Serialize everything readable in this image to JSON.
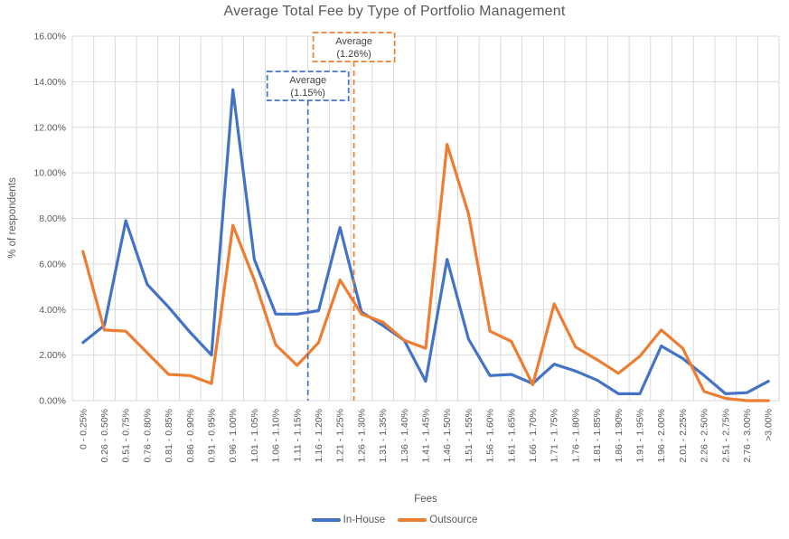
{
  "title": "Average Total Fee by Type of Portfolio Management",
  "axes": {
    "y_title": "% of respondents",
    "x_title": "Fees",
    "y_tick_labels": [
      "0.00%",
      "2.00%",
      "4.00%",
      "6.00%",
      "8.00%",
      "10.00%",
      "12.00%",
      "14.00%",
      "16.00%"
    ]
  },
  "legend": {
    "items": [
      {
        "label": "In-House",
        "color": "#4472C4"
      },
      {
        "label": "Outsource",
        "color": "#ED7D31"
      }
    ]
  },
  "annotations": [
    {
      "line1": "Average",
      "line2": "(1.15%)",
      "color": "#4472C4",
      "x_boundary": 11
    },
    {
      "line1": "Average",
      "line2": "(1.26%)",
      "color": "#ED7D31",
      "x_boundary": 13.15
    }
  ],
  "colors": {
    "gridline": "#D9D9D9",
    "tick_text": "#595959",
    "annotation_text": "#404040",
    "background": "#FFFFFF"
  },
  "chart_data": {
    "type": "line",
    "title": "Average Total Fee by Type of Portfolio Management",
    "xlabel": "Fees",
    "ylabel": "% of respondents",
    "ylim": [
      0,
      16
    ],
    "ytick_step": 2,
    "grid": true,
    "legend_position": "bottom",
    "x_tick_rotation": 90,
    "categories": [
      "0 - 0.25%",
      "0.26 - 0.50%",
      "0.51 - 0.75%",
      "0.76 - 0.80%",
      "0.81 - 0.85%",
      "0.86 - 0.90%",
      "0.91 - 0.95%",
      "0.96 - 1.00%",
      "1.01 - 1.05%",
      "1.06 - 1.10%",
      "1.11 - 1.15%",
      "1.16 - 1.20%",
      "1.21 - 1.25%",
      "1.26 - 1.30%",
      "1.31 - 1.35%",
      "1.36 - 1.40%",
      "1.41 - 1.45%",
      "1.46 - 1.50%",
      "1.51 - 1.55%",
      "1.56 - 1.60%",
      "1.61 - 1.65%",
      "1.66 - 1.70%",
      "1.71 - 1.75%",
      "1.76 - 1.80%",
      "1.81 - 1.85%",
      "1.86 - 1.90%",
      "1.91 - 1.95%",
      "1.96 - 2.00%",
      "2.01 - 2.25%",
      "2.26 - 2.50%",
      "2.51 - 2.75%",
      "2.76 - 3.00%",
      ">3.00%"
    ],
    "series": [
      {
        "name": "In-House",
        "color": "#4472C4",
        "values": [
          2.55,
          3.3,
          7.9,
          5.1,
          4.1,
          3.0,
          2.0,
          13.65,
          6.2,
          3.8,
          3.8,
          3.95,
          7.6,
          3.9,
          3.3,
          2.65,
          0.85,
          6.2,
          2.7,
          1.1,
          1.15,
          0.75,
          1.6,
          1.3,
          0.9,
          0.3,
          0.3,
          2.4,
          1.85,
          1.1,
          0.3,
          0.35,
          0.85
        ]
      },
      {
        "name": "Outsource",
        "color": "#ED7D31",
        "values": [
          6.55,
          3.1,
          3.05,
          2.1,
          1.15,
          1.1,
          0.75,
          7.7,
          5.3,
          2.45,
          1.55,
          2.55,
          5.3,
          3.8,
          3.45,
          2.65,
          2.3,
          11.25,
          8.2,
          3.05,
          2.6,
          0.7,
          4.25,
          2.35,
          1.8,
          1.2,
          1.95,
          3.1,
          2.3,
          0.4,
          0.1,
          0.0,
          0.0
        ]
      }
    ],
    "average_markers": [
      {
        "series": "In-House",
        "label": "Average (1.15%)",
        "value_pct": 1.15
      },
      {
        "series": "Outsource",
        "label": "Average (1.26%)",
        "value_pct": 1.26
      }
    ]
  }
}
